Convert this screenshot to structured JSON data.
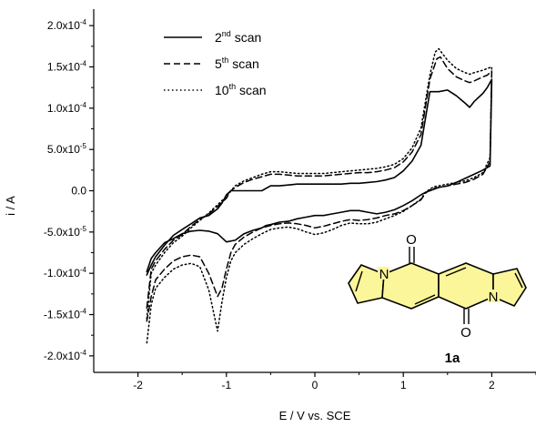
{
  "chart_data": {
    "type": "line",
    "title": "",
    "xlabel": "E / V vs. SCE",
    "ylabel": "i / A",
    "xlim": [
      -2.5,
      2.5
    ],
    "ylim": [
      -0.00022,
      0.00022
    ],
    "xticks": [
      -2,
      -1,
      0,
      1,
      2
    ],
    "xtick_labels": [
      "-2",
      "-1",
      "0",
      "1",
      "2"
    ],
    "yticks": [
      -0.0002,
      -0.00015,
      -0.0001,
      -5e-05,
      0,
      5e-05,
      0.0001,
      0.00015,
      0.0002
    ],
    "ytick_labels": [
      {
        "mant": "-2.0x10",
        "exp": "-4"
      },
      {
        "mant": "-1.5x10",
        "exp": "-4"
      },
      {
        "mant": "-1.0x10",
        "exp": "-4"
      },
      {
        "mant": "-5.0x10",
        "exp": "-5"
      },
      {
        "mant": "0.0",
        "exp": ""
      },
      {
        "mant": "5.0x10",
        "exp": "-5"
      },
      {
        "mant": "1.0x10",
        "exp": "-4"
      },
      {
        "mant": "1.5x10",
        "exp": "-4"
      },
      {
        "mant": "2.0x10",
        "exp": "-4"
      }
    ],
    "grid": false,
    "legend_position": "top-left",
    "series": [
      {
        "name": "2nd scan",
        "legend_main": "2",
        "legend_sup": "nd",
        "legend_rest": " scan",
        "style": "solid",
        "x": [
          -1.9,
          -1.85,
          -1.8,
          -1.7,
          -1.6,
          -1.5,
          -1.4,
          -1.3,
          -1.2,
          -1.1,
          -1.05,
          -1.0,
          -0.95,
          -0.9,
          -0.8,
          -0.7,
          -0.6,
          -0.5,
          -0.4,
          -0.3,
          -0.2,
          -0.1,
          0.0,
          0.1,
          0.2,
          0.3,
          0.4,
          0.5,
          0.6,
          0.7,
          0.8,
          0.9,
          1.0,
          1.1,
          1.2,
          1.3,
          1.4,
          1.5,
          1.6,
          1.7,
          1.75,
          1.8,
          1.9,
          1.95,
          2.0,
          1.98,
          1.9,
          1.8,
          1.7,
          1.6,
          1.5,
          1.4,
          1.35,
          1.3,
          1.25,
          1.2,
          1.1,
          1.0,
          0.9,
          0.8,
          0.7,
          0.6,
          0.5,
          0.4,
          0.3,
          0.2,
          0.1,
          0.0,
          -0.1,
          -0.2,
          -0.3,
          -0.4,
          -0.5,
          -0.55,
          -0.6,
          -0.7,
          -0.8,
          -0.9,
          -1.0,
          -1.1,
          -1.2,
          -1.3,
          -1.4,
          -1.5,
          -1.6,
          -1.7,
          -1.8,
          -1.85,
          -1.9
        ],
        "y": [
          -0.000102,
          -9e-05,
          -8e-05,
          -6.6e-05,
          -5.4e-05,
          -4.7e-05,
          -4e-05,
          -3.3e-05,
          -3e-05,
          -2.2e-05,
          -1.5e-05,
          -5e-06,
          0.0,
          0.0,
          0.0,
          0.0,
          0.0,
          6e-06,
          6e-06,
          7e-06,
          8e-06,
          8e-06,
          8e-06,
          8e-06,
          8e-06,
          8e-06,
          9e-06,
          9e-06,
          1e-05,
          1.1e-05,
          1.3e-05,
          1.6e-05,
          2.4e-05,
          3.6e-05,
          5.5e-05,
          0.00012,
          0.00012,
          0.000122,
          0.000115,
          0.000106,
          0.000101,
          0.000108,
          0.000118,
          0.000125,
          0.000135,
          3e-05,
          2.5e-05,
          2e-05,
          1.5e-05,
          1e-05,
          6e-06,
          4e-06,
          2e-06,
          0.0,
          -2e-06,
          -5e-06,
          -1.2e-05,
          -1.8e-05,
          -2.3e-05,
          -2.6e-05,
          -2.8e-05,
          -2.6e-05,
          -2.4e-05,
          -2.4e-05,
          -2.6e-05,
          -2.8e-05,
          -3e-05,
          -3e-05,
          -3.2e-05,
          -3.4e-05,
          -3.7e-05,
          -3.8e-05,
          -4.1e-05,
          -4.2e-05,
          -4.5e-05,
          -4.8e-05,
          -5.2e-05,
          -6e-05,
          -6.2e-05,
          -5.2e-05,
          -4.9e-05,
          -4.8e-05,
          -4.9e-05,
          -5.2e-05,
          -5.8e-05,
          -6.3e-05,
          -7.5e-05,
          -8.2e-05,
          -9.8e-05
        ]
      },
      {
        "name": "5th scan",
        "legend_main": "5",
        "legend_sup": "th",
        "legend_rest": " scan",
        "style": "dashed",
        "x": [
          -1.9,
          -1.85,
          -1.8,
          -1.7,
          -1.6,
          -1.5,
          -1.4,
          -1.3,
          -1.2,
          -1.1,
          -1.0,
          -0.95,
          -0.9,
          -0.8,
          -0.7,
          -0.6,
          -0.5,
          -0.4,
          -0.3,
          -0.2,
          -0.1,
          0.0,
          0.1,
          0.2,
          0.3,
          0.4,
          0.5,
          0.6,
          0.7,
          0.8,
          0.9,
          1.0,
          1.1,
          1.2,
          1.3,
          1.38,
          1.42,
          1.5,
          1.6,
          1.7,
          1.75,
          1.8,
          1.9,
          1.95,
          2.0,
          1.98,
          1.9,
          1.8,
          1.7,
          1.6,
          1.5,
          1.4,
          1.35,
          1.3,
          1.25,
          1.2,
          1.1,
          1.0,
          0.9,
          0.8,
          0.7,
          0.6,
          0.5,
          0.4,
          0.3,
          0.2,
          0.1,
          0.0,
          -0.1,
          -0.2,
          -0.3,
          -0.4,
          -0.5,
          -0.6,
          -0.7,
          -0.8,
          -0.9,
          -0.95,
          -1.0,
          -1.05,
          -1.1,
          -1.2,
          -1.3,
          -1.4,
          -1.5,
          -1.6,
          -1.7,
          -1.8,
          -1.85,
          -1.9
        ],
        "y": [
          -0.000142,
          -9.5e-05,
          -8.5e-05,
          -7.1e-05,
          -6e-05,
          -5.3e-05,
          -4.3e-05,
          -3.5e-05,
          -2.8e-05,
          -1.9e-05,
          -9e-06,
          0.0,
          4e-06,
          1e-05,
          1.4e-05,
          1.7e-05,
          2e-05,
          2e-05,
          1.9e-05,
          1.8e-05,
          1.8e-05,
          1.8e-05,
          1.8e-05,
          1.9e-05,
          2e-05,
          2.1e-05,
          2.2e-05,
          2.2e-05,
          2.3e-05,
          2.5e-05,
          2.8e-05,
          3.5e-05,
          4.7e-05,
          6.8e-05,
          0.000135,
          0.00016,
          0.000162,
          0.000148,
          0.000138,
          0.000133,
          0.000131,
          0.000133,
          0.000138,
          0.00014,
          0.000145,
          3.5e-05,
          2e-05,
          1.4e-05,
          1e-05,
          8e-06,
          6e-06,
          4e-06,
          3e-06,
          1e-06,
          -3e-06,
          -1.1e-05,
          -1.8e-05,
          -2.4e-05,
          -2.8e-05,
          -3e-05,
          -3.3e-05,
          -3.5e-05,
          -3.6e-05,
          -3.5e-05,
          -3.7e-05,
          -4e-05,
          -4.3e-05,
          -4.5e-05,
          -4.2e-05,
          -4e-05,
          -3.9e-05,
          -4e-05,
          -4.2e-05,
          -4.5e-05,
          -5e-05,
          -5.6e-05,
          -6.5e-05,
          -7.5e-05,
          -9.5e-05,
          -0.000118,
          -0.000128,
          -0.0001,
          -8e-05,
          -7.8e-05,
          -8e-05,
          -8.5e-05,
          -9.5e-05,
          -0.000108,
          -0.000128,
          -0.000158
        ]
      },
      {
        "name": "10th scan",
        "legend_main": "10",
        "legend_sup": "th",
        "legend_rest": " scan",
        "style": "dotted",
        "x": [
          -1.9,
          -1.85,
          -1.8,
          -1.7,
          -1.6,
          -1.5,
          -1.4,
          -1.3,
          -1.2,
          -1.1,
          -1.0,
          -0.95,
          -0.9,
          -0.8,
          -0.7,
          -0.6,
          -0.5,
          -0.4,
          -0.3,
          -0.2,
          -0.1,
          0.0,
          0.1,
          0.2,
          0.3,
          0.4,
          0.5,
          0.6,
          0.7,
          0.8,
          0.9,
          1.0,
          1.1,
          1.2,
          1.3,
          1.36,
          1.4,
          1.5,
          1.6,
          1.7,
          1.75,
          1.8,
          1.9,
          1.95,
          2.0,
          1.98,
          1.9,
          1.8,
          1.7,
          1.6,
          1.5,
          1.4,
          1.35,
          1.3,
          1.25,
          1.2,
          1.1,
          1.0,
          0.9,
          0.8,
          0.7,
          0.6,
          0.5,
          0.4,
          0.3,
          0.2,
          0.1,
          0.0,
          -0.1,
          -0.2,
          -0.3,
          -0.4,
          -0.5,
          -0.6,
          -0.7,
          -0.8,
          -0.9,
          -0.95,
          -1.0,
          -1.05,
          -1.1,
          -1.2,
          -1.3,
          -1.4,
          -1.5,
          -1.6,
          -1.7,
          -1.8,
          -1.85,
          -1.9
        ],
        "y": [
          -0.000155,
          -0.0001,
          -9e-05,
          -7.5e-05,
          -6.3e-05,
          -5.5e-05,
          -4.5e-05,
          -3.6e-05,
          -2.7e-05,
          -1.7e-05,
          -7e-06,
          0.0,
          6e-06,
          1.2e-05,
          1.6e-05,
          2e-05,
          2.3e-05,
          2.3e-05,
          2.2e-05,
          2.1e-05,
          2.1e-05,
          2.1e-05,
          2.1e-05,
          2.2e-05,
          2.3e-05,
          2.4e-05,
          2.5e-05,
          2.6e-05,
          2.7e-05,
          2.9e-05,
          3.2e-05,
          3.9e-05,
          5.2e-05,
          7.6e-05,
          0.00014,
          0.000168,
          0.000172,
          0.000158,
          0.000148,
          0.000143,
          0.000141,
          0.000143,
          0.000146,
          0.000148,
          0.00015,
          4e-05,
          2.2e-05,
          1.6e-05,
          1.2e-05,
          1e-05,
          8e-06,
          6e-06,
          5e-06,
          2e-06,
          -2e-06,
          -1e-05,
          -1.8e-05,
          -2.5e-05,
          -3e-05,
          -3.4e-05,
          -3.8e-05,
          -4e-05,
          -4e-05,
          -3.9e-05,
          -4.2e-05,
          -4.7e-05,
          -5.1e-05,
          -5.3e-05,
          -5e-05,
          -4.6e-05,
          -4.4e-05,
          -4.5e-05,
          -4.7e-05,
          -5.2e-05,
          -5.8e-05,
          -6.5e-05,
          -7.5e-05,
          -8.5e-05,
          -0.000105,
          -0.000135,
          -0.00017,
          -0.00012,
          -9.2e-05,
          -8.8e-05,
          -9e-05,
          -9.5e-05,
          -0.000105,
          -0.000118,
          -0.000138,
          -0.000185
        ]
      }
    ]
  },
  "structure": {
    "compound_label": "1a",
    "atom_O": "O",
    "atom_N": "N",
    "ring_fill": "#fbf69a"
  }
}
